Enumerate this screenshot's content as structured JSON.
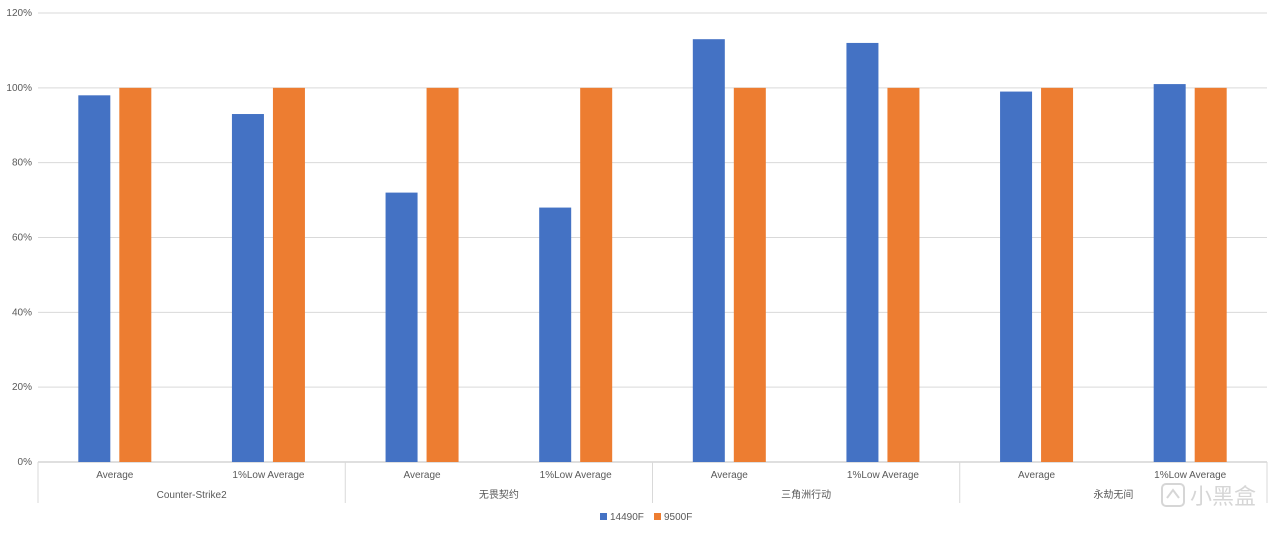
{
  "chart_data": {
    "type": "bar",
    "title": "",
    "xlabel": "",
    "ylabel": "",
    "ylim": [
      0,
      120
    ],
    "y_ticks": [
      "0%",
      "20%",
      "40%",
      "60%",
      "80%",
      "100%",
      "120%"
    ],
    "y_tick_values": [
      0,
      20,
      40,
      60,
      80,
      100,
      120
    ],
    "grid": true,
    "legend_position": "bottom",
    "groups": [
      {
        "name": "Counter-Strike2",
        "categories": [
          "Average",
          "1%Low Average"
        ]
      },
      {
        "name": "无畏契约",
        "categories": [
          "Average",
          "1%Low Average"
        ]
      },
      {
        "name": "三角洲行动",
        "categories": [
          "Average",
          "1%Low Average"
        ]
      },
      {
        "name": "永劫无间",
        "categories": [
          "Average",
          "1%Low Average"
        ]
      }
    ],
    "categories": [
      "Average",
      "1%Low Average",
      "Average",
      "1%Low Average",
      "Average",
      "1%Low Average",
      "Average",
      "1%Low Average"
    ],
    "series": [
      {
        "name": "14490F",
        "color": "#4472C4",
        "values": [
          98,
          93,
          72,
          68,
          113,
          112,
          99,
          101
        ]
      },
      {
        "name": "9500F",
        "color": "#ED7D31",
        "values": [
          100,
          100,
          100,
          100,
          100,
          100,
          100,
          100
        ]
      }
    ]
  },
  "watermark": "小黑盒"
}
